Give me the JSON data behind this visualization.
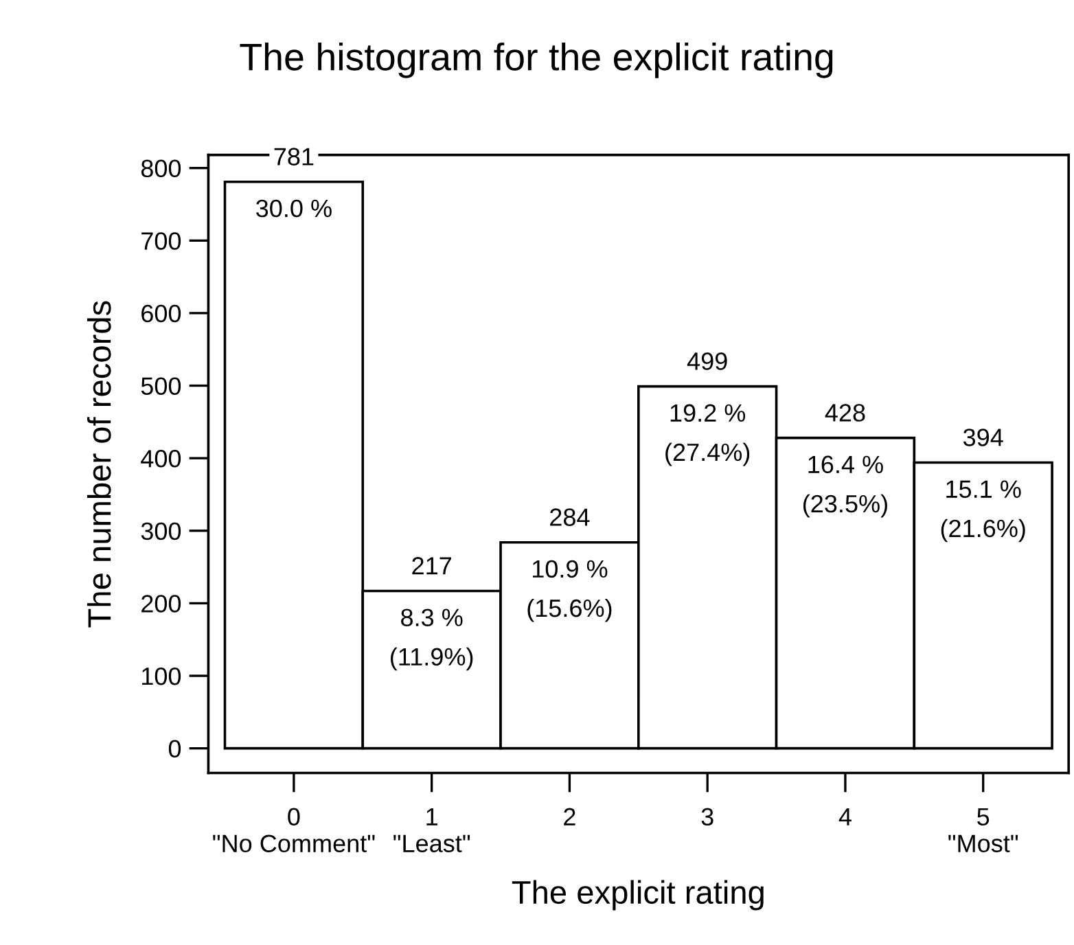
{
  "chart_data": {
    "type": "bar",
    "title": "The histogram for the explicit rating",
    "xlabel": "The explicit rating",
    "ylabel": "The number of records",
    "categories": [
      "0\n\"No Comment\"",
      "1\n\"Least\"",
      "2",
      "3",
      "4",
      "5\n\"Most\""
    ],
    "values": [
      781,
      217,
      284,
      499,
      428,
      394
    ],
    "color": "#ffffff",
    "data_labels": true,
    "ylim": [
      -34,
      818
    ],
    "yticks": [
      0,
      100,
      200,
      300,
      400,
      500,
      600,
      700,
      800
    ],
    "grid": false,
    "legend": false,
    "annotations": [
      {
        "text": "30.0 %",
        "x": "0\n\"No Comment\"",
        "y": 781
      },
      {
        "text": "8.3 %\n(11.9%)",
        "x": "1\n\"Least\"",
        "y": 217
      },
      {
        "text": "10.9 %\n(15.6%)",
        "x": "2",
        "y": 284
      },
      {
        "text": "19.2 %\n(27.4%)",
        "x": "3",
        "y": 499
      },
      {
        "text": "16.4 %\n(23.5%)",
        "x": "4",
        "y": 428
      },
      {
        "text": "15.1 %\n(21.6%)",
        "x": "5\n\"Most\"",
        "y": 394
      }
    ]
  }
}
